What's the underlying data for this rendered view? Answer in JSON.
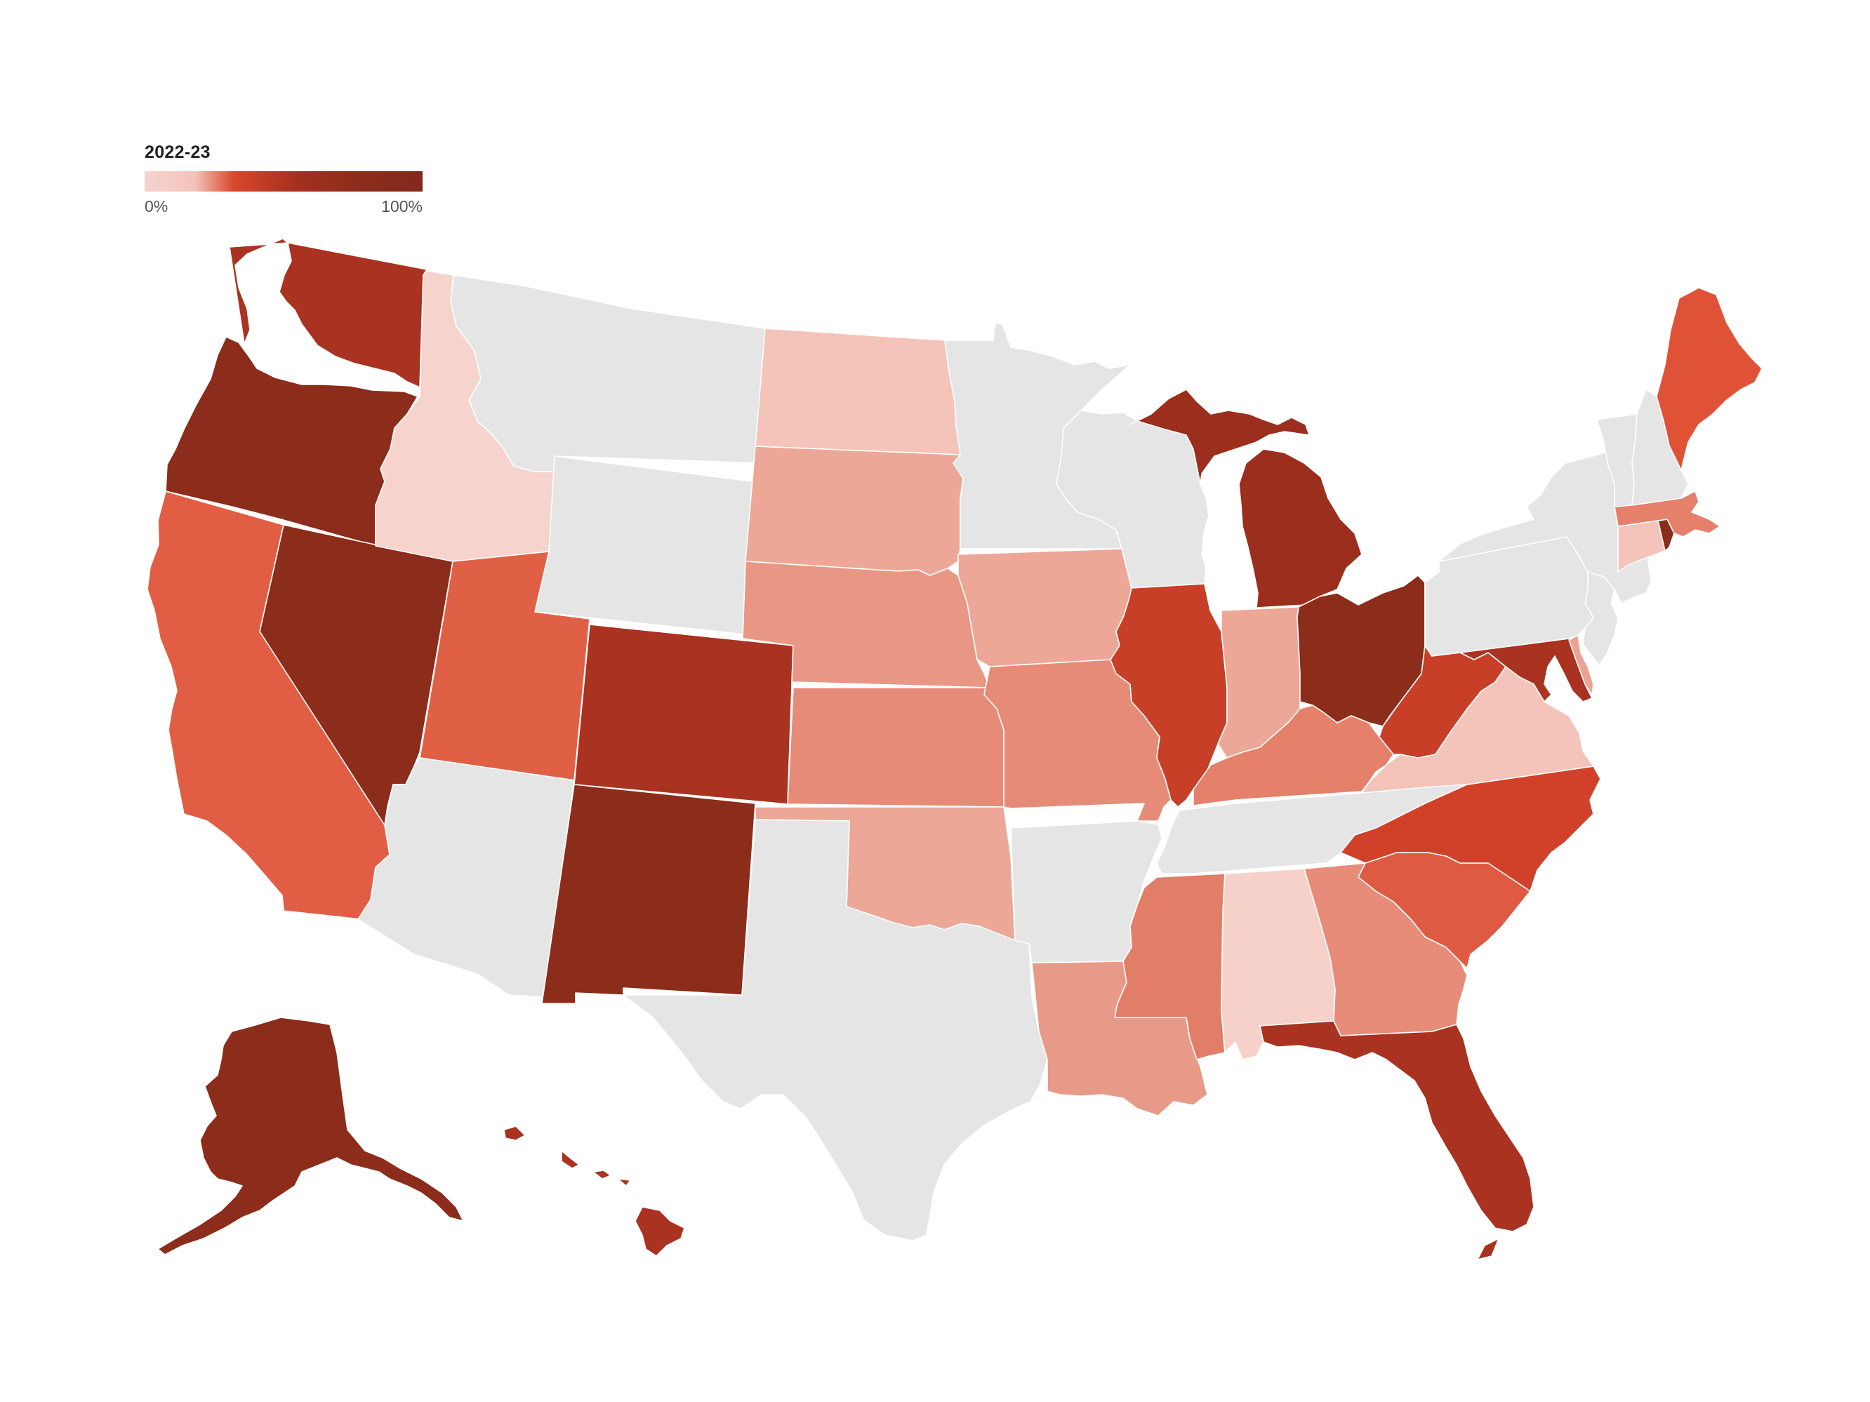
{
  "legend": {
    "title": "2022-23",
    "min_label": "0%",
    "max_label": "100%"
  },
  "colors": {
    "no_data": "#e5e5e5",
    "scale_low": "#f7d3ce",
    "scale_high": "#842a1b"
  },
  "states": [
    {
      "id": "WA",
      "color": "#a93220"
    },
    {
      "id": "OR",
      "color": "#8c2c1a"
    },
    {
      "id": "CA",
      "color": "#e15e45"
    },
    {
      "id": "NV",
      "color": "#8c2c1a"
    },
    {
      "id": "ID",
      "color": "#f6d3cd"
    },
    {
      "id": "MT",
      "color": "#e5e5e5"
    },
    {
      "id": "WY",
      "color": "#e5e5e5"
    },
    {
      "id": "UT",
      "color": "#e06046"
    },
    {
      "id": "AZ",
      "color": "#e5e5e5"
    },
    {
      "id": "CO",
      "color": "#a93220"
    },
    {
      "id": "NM",
      "color": "#8c2c1a"
    },
    {
      "id": "ND",
      "color": "#f4c3b9"
    },
    {
      "id": "SD",
      "color": "#eca797"
    },
    {
      "id": "NE",
      "color": "#e89784"
    },
    {
      "id": "KS",
      "color": "#e68b77"
    },
    {
      "id": "OK",
      "color": "#eca797"
    },
    {
      "id": "TX",
      "color": "#e5e5e5"
    },
    {
      "id": "MN",
      "color": "#e5e5e5"
    },
    {
      "id": "IA",
      "color": "#eca797"
    },
    {
      "id": "MO",
      "color": "#e68b77"
    },
    {
      "id": "AR",
      "color": "#e5e5e5"
    },
    {
      "id": "LA",
      "color": "#e89a88"
    },
    {
      "id": "WI",
      "color": "#e5e5e5"
    },
    {
      "id": "IL",
      "color": "#c63f26"
    },
    {
      "id": "MI",
      "color": "#9b2e1c"
    },
    {
      "id": "IN",
      "color": "#eca797"
    },
    {
      "id": "OH",
      "color": "#8c2c1a"
    },
    {
      "id": "KY",
      "color": "#e5806a"
    },
    {
      "id": "TN",
      "color": "#e5e5e5"
    },
    {
      "id": "MS",
      "color": "#e27d68"
    },
    {
      "id": "AL",
      "color": "#f6d1ca"
    },
    {
      "id": "GA",
      "color": "#e78c78"
    },
    {
      "id": "FL",
      "color": "#a93220"
    },
    {
      "id": "SC",
      "color": "#df5a42"
    },
    {
      "id": "NC",
      "color": "#d14129"
    },
    {
      "id": "VA",
      "color": "#f4c3b9"
    },
    {
      "id": "WV",
      "color": "#c63f26"
    },
    {
      "id": "MD",
      "color": "#a93220"
    },
    {
      "id": "DE",
      "color": "#e9a493"
    },
    {
      "id": "NJ",
      "color": "#e5e5e5"
    },
    {
      "id": "PA",
      "color": "#e5e5e5"
    },
    {
      "id": "NY",
      "color": "#e5e5e5"
    },
    {
      "id": "CT",
      "color": "#f4c3b9"
    },
    {
      "id": "RI",
      "color": "#8c2c1a"
    },
    {
      "id": "MA",
      "color": "#e5806a"
    },
    {
      "id": "VT",
      "color": "#e5e5e5"
    },
    {
      "id": "NH",
      "color": "#e5e5e5"
    },
    {
      "id": "ME",
      "color": "#df5236"
    },
    {
      "id": "AK",
      "color": "#8c2c1a"
    },
    {
      "id": "HI",
      "color": "#a93220"
    }
  ]
}
